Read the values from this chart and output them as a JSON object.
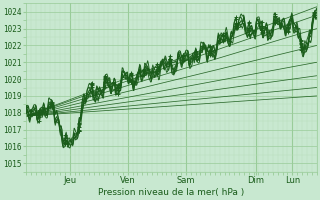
{
  "title": "Pression niveau de la mer( hPa )",
  "ylabel_values": [
    1015,
    1016,
    1017,
    1018,
    1019,
    1020,
    1021,
    1022,
    1023,
    1024
  ],
  "ylim": [
    1014.5,
    1024.5
  ],
  "xlim": [
    0,
    120
  ],
  "bg_color": "#c8e8d0",
  "grid_major_color": "#99cc99",
  "grid_minor_color": "#b8ddb8",
  "line_color": "#1a5c1a",
  "font_color": "#1a5c1a",
  "xtick_labels": [
    "Jeu",
    "Ven",
    "Sam",
    "Dim",
    "Lun"
  ],
  "xtick_positions": [
    18,
    42,
    66,
    95,
    110
  ],
  "xtick_vline_positions": [
    18,
    42,
    66,
    95,
    110
  ]
}
